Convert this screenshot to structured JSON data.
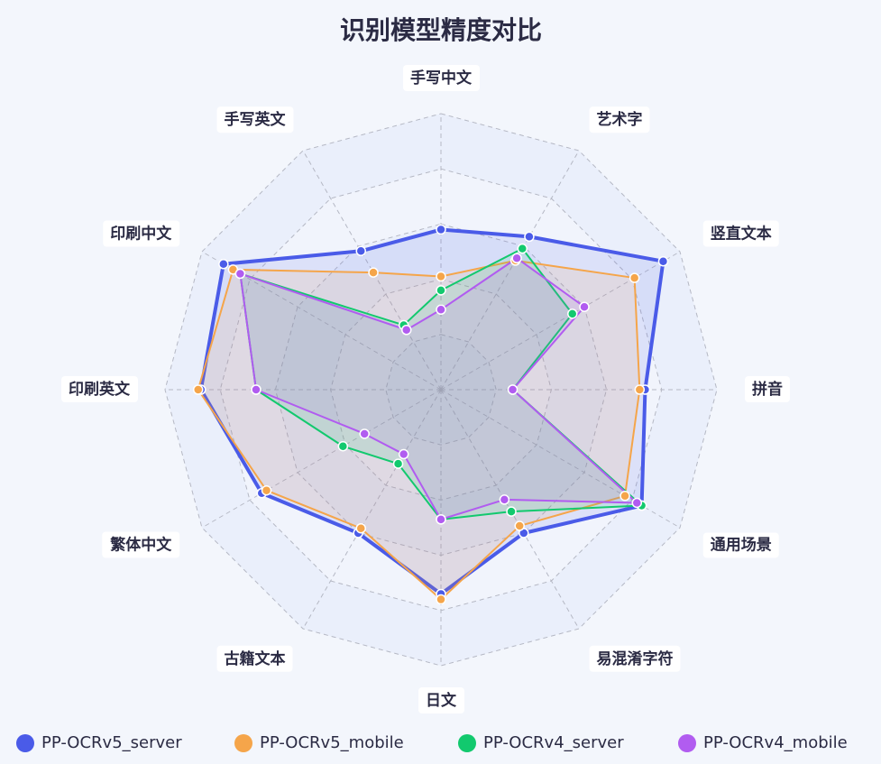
{
  "chart_data": {
    "type": "radar",
    "title": "识别模型精度对比",
    "categories": [
      "手写中文",
      "艺术字",
      "竖直文本",
      "拼音",
      "通用场景",
      "易混淆字符",
      "日文",
      "古籍文本",
      "繁体中文",
      "印刷英文",
      "印刷中文",
      "手写英文"
    ],
    "rlim": [
      0,
      1
    ],
    "rticks": [
      0.2,
      0.4,
      0.6,
      0.8,
      1
    ],
    "grid": true,
    "legend": "bottom",
    "series": [
      {
        "name": "PP-OCRv5_server",
        "color": "#4a5be8",
        "values": [
          0.58,
          0.64,
          0.93,
          0.74,
          0.84,
          0.6,
          0.74,
          0.6,
          0.75,
          0.87,
          0.91,
          0.58
        ]
      },
      {
        "name": "PP-OCRv5_mobile",
        "color": "#f5a54a",
        "values": [
          0.41,
          0.54,
          0.81,
          0.72,
          0.77,
          0.57,
          0.76,
          0.58,
          0.73,
          0.88,
          0.87,
          0.49
        ]
      },
      {
        "name": "PP-OCRv4_server",
        "color": "#12c96e",
        "values": [
          0.36,
          0.59,
          0.55,
          0.26,
          0.84,
          0.51,
          0.47,
          0.31,
          0.41,
          0.67,
          0.84,
          0.27
        ]
      },
      {
        "name": "PP-OCRv4_mobile",
        "color": "#b15cf0",
        "values": [
          0.29,
          0.55,
          0.6,
          0.26,
          0.82,
          0.46,
          0.47,
          0.27,
          0.32,
          0.67,
          0.84,
          0.25
        ]
      }
    ]
  }
}
